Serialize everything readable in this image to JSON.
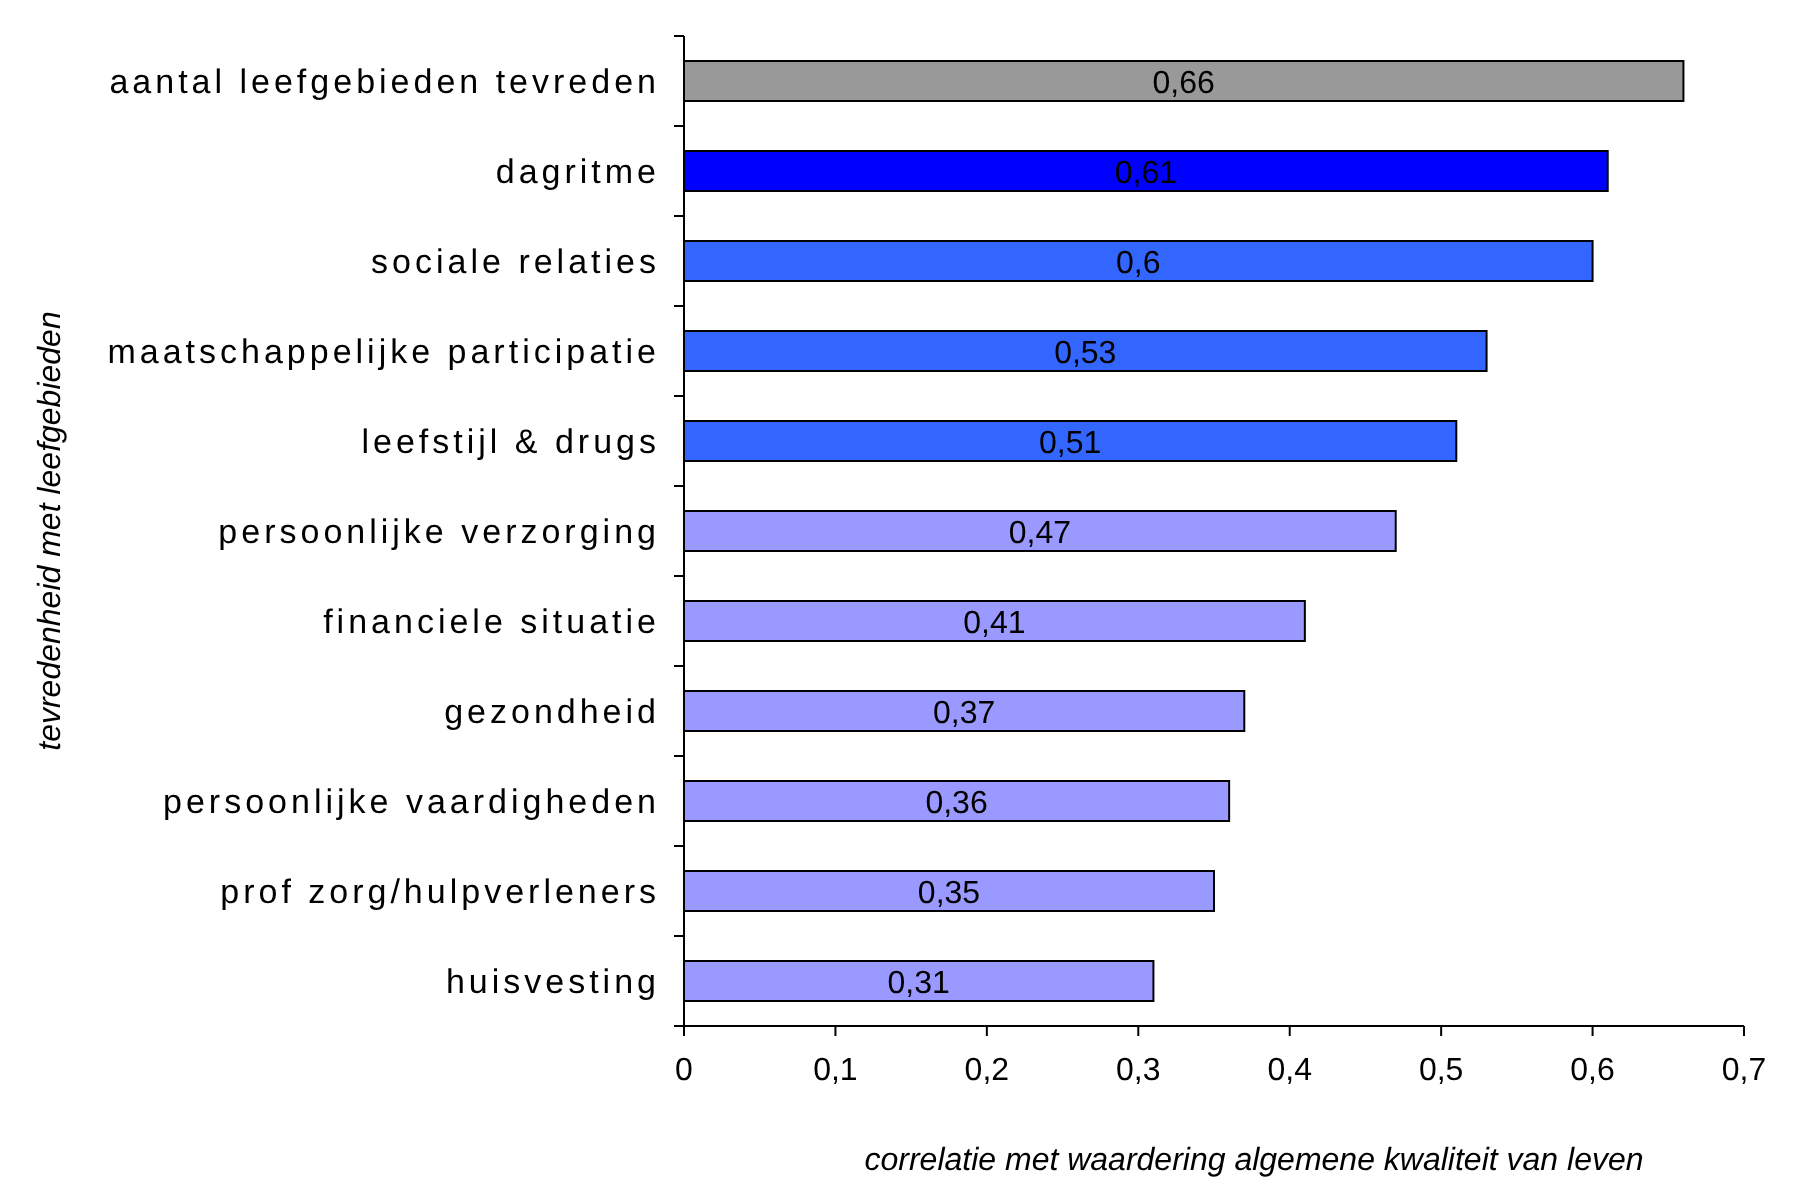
{
  "chart_data": {
    "type": "bar",
    "orientation": "horizontal",
    "xlabel": "correlatie met waardering algemene kwaliteit van leven",
    "ylabel": "tevredenheid met leefgebieden",
    "categories": [
      "aantal leefgebieden tevreden",
      "dagritme",
      "sociale relaties",
      "maatschappelijke participatie",
      "leefstijl & drugs",
      "persoonlijke verzorging",
      "financiele situatie",
      "gezondheid",
      "persoonlijke vaardigheden",
      "prof zorg/hulpverleners",
      "huisvesting"
    ],
    "values": [
      0.66,
      0.61,
      0.6,
      0.53,
      0.51,
      0.47,
      0.41,
      0.37,
      0.36,
      0.35,
      0.31
    ],
    "colors": [
      "#999999",
      "#0000ff",
      "#3366ff",
      "#3366ff",
      "#3366ff",
      "#9999ff",
      "#9999ff",
      "#9999ff",
      "#9999ff",
      "#9999ff",
      "#9999ff"
    ],
    "value_labels": [
      "0,66",
      "0,61",
      "0,6",
      "0,53",
      "0,51",
      "0,47",
      "0,41",
      "0,37",
      "0,36",
      "0,35",
      "0,31"
    ],
    "xlim": [
      0,
      0.7
    ],
    "xticks": [
      0,
      {
        "value": 0.1,
        "label": "0,1"
      },
      {
        "value": 0.2,
        "label": "0,2"
      },
      {
        "value": 0.3,
        "label": "0,3"
      },
      {
        "value": 0.4,
        "label": "0,4"
      },
      {
        "value": 0.5,
        "label": "0,5"
      },
      {
        "value": 0.6,
        "label": "0,6"
      },
      {
        "value": 0.7,
        "label": "0,7"
      }
    ],
    "grid": false
  }
}
